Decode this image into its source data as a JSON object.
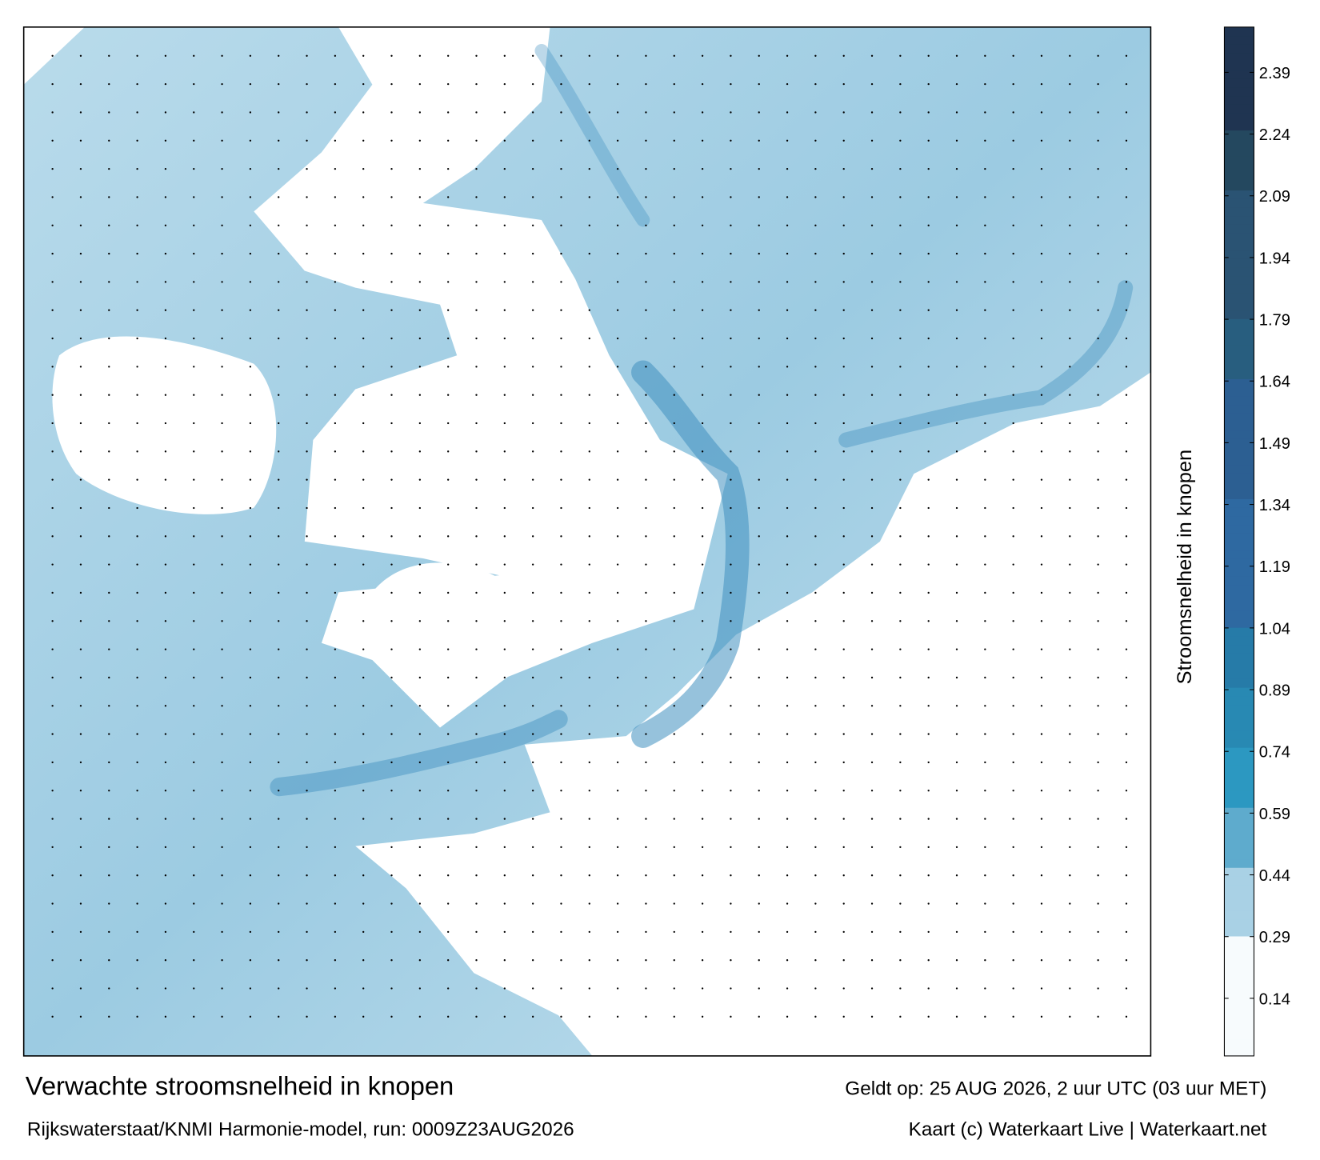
{
  "title": "Verwachte stroomsnelheid in knopen",
  "subtitle": "Rijkswaterstaat/KNMI Harmonie-model, run: 0009Z23AUG2026",
  "valid_time": "Geldt op: 25 AUG 2026, 2 uur UTC (03 uur MET)",
  "credit": "Kaart (c) Waterkaart Live | Waterkaart.net",
  "colorbar": {
    "label": "Stroomsnelheid in knopen",
    "lim": [
      0,
      2.5
    ],
    "ticks": [
      0.14,
      0.29,
      0.44,
      0.59,
      0.74,
      0.89,
      1.04,
      1.19,
      1.34,
      1.49,
      1.64,
      1.79,
      1.94,
      2.09,
      2.24,
      2.39
    ],
    "colorscale": [
      {
        "value": 0,
        "color": "#f7fbfd"
      },
      {
        "value": 0.29,
        "color": "#a9d1e5"
      },
      {
        "value": 0.44,
        "color": "#5eabcd"
      },
      {
        "value": 0.59,
        "color": "#2c98c1"
      },
      {
        "value": 0.74,
        "color": "#2889b3"
      },
      {
        "value": 0.89,
        "color": "#267ba8"
      },
      {
        "value": 1.04,
        "color": "#2e69a1"
      },
      {
        "value": 1.34,
        "color": "#2c5f92"
      },
      {
        "value": 1.64,
        "color": "#285e7f"
      },
      {
        "value": 1.79,
        "color": "#2a5373"
      },
      {
        "value": 2.09,
        "color": "#24485f"
      },
      {
        "value": 2.24,
        "color": "#1f3451"
      },
      {
        "value": 2.5,
        "color": "#1b1a38"
      }
    ]
  }
}
